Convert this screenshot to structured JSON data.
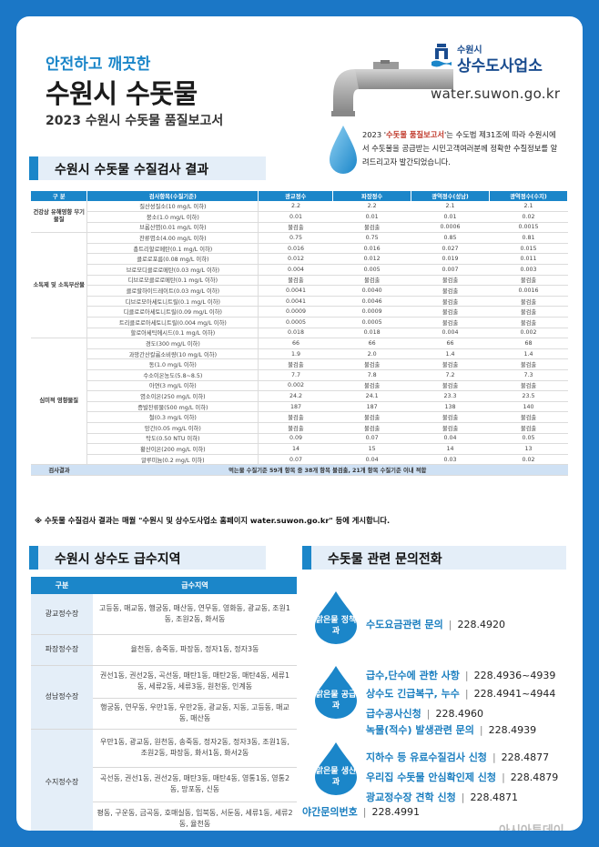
{
  "header": {
    "subtitle": "안전하고 깨끗한",
    "title": "수원시 수돗물",
    "report": "2023 수원시 수돗물 품질보고서",
    "logo_small": "수원시",
    "logo_big": "상수도사업소",
    "url": "water.suwon.go.kr",
    "intro_pre": "2023 '",
    "intro_hl": "수돗물 품질보고서",
    "intro_post": "'는 수도법 제31조에 따라 수원시에서 수돗물을 공급받는 시민고객여러분께 정확한 수질정보를 알려드리고자 발간되었습니다."
  },
  "colors": {
    "accent": "#1b86c9",
    "background": "#1b77c6",
    "highlight": "#c0392b"
  },
  "quality": {
    "section_title": "수원시 수돗물 수질검사 결과",
    "headers": [
      "구 분",
      "검사항목(수질기준)",
      "광교정수",
      "파장정수",
      "광역정수(성남)",
      "광역정수(수지)"
    ],
    "groups": [
      {
        "category": "건강상 유해영향 무기물질",
        "rows": [
          [
            "질산성질소(10 mg/L 이하)",
            "2.2",
            "2.2",
            "2.1",
            "2.1"
          ],
          [
            "붕소(1.0 mg/L 이하)",
            "0.01",
            "0.01",
            "0.01",
            "0.02"
          ],
          [
            "브롬산염(0.01 mg/L 이하)",
            "불검출",
            "불검출",
            "0.0006",
            "0.0015"
          ]
        ]
      },
      {
        "category": "소독제 및 소독부산물",
        "rows": [
          [
            "잔류염소(4.00 mg/L 이하)",
            "0.75",
            "0.75",
            "0.85",
            "0.81"
          ],
          [
            "총트리할로메탄(0.1 mg/L 이하)",
            "0.016",
            "0.016",
            "0.027",
            "0.015"
          ],
          [
            "클로로포름(0.08 mg/L 이하)",
            "0.012",
            "0.012",
            "0.019",
            "0.011"
          ],
          [
            "브로모디클로로메탄(0.03 mg/L 이하)",
            "0.004",
            "0.005",
            "0.007",
            "0.003"
          ],
          [
            "디브로모클로로메탄(0.1 mg/L 이하)",
            "불검출",
            "불검출",
            "불검출",
            "불검출"
          ],
          [
            "클로랄하이드레이트(0.03 mg/L 이하)",
            "0.0041",
            "0.0040",
            "불검출",
            "0.0016"
          ],
          [
            "디브로모아세토니트릴(0.1 mg/L 이하)",
            "0.0041",
            "0.0046",
            "불검출",
            "불검출"
          ],
          [
            "디클로로아세토니트릴(0.09 mg/L 이하)",
            "0.0009",
            "0.0009",
            "불검출",
            "불검출"
          ],
          [
            "트리클로로아세토니트릴(0.004 mg/L 이하)",
            "0.0005",
            "0.0005",
            "불검출",
            "불검출"
          ],
          [
            "할로아세틱에시드(0.1 mg/L 이하)",
            "0.018",
            "0.018",
            "0.004",
            "0.002"
          ]
        ]
      },
      {
        "category": "심미적 영향물질",
        "rows": [
          [
            "경도(300 mg/L 이하)",
            "66",
            "66",
            "66",
            "68"
          ],
          [
            "과망간산칼륨소비량(10 mg/L 이하)",
            "1.9",
            "2.0",
            "1.4",
            "1.4"
          ],
          [
            "동(1.0 mg/L 이하)",
            "불검출",
            "불검출",
            "불검출",
            "불검출"
          ],
          [
            "수소이온농도(5.8~8.5)",
            "7.7",
            "7.8",
            "7.2",
            "7.3"
          ],
          [
            "아연(3 mg/L 이하)",
            "0.002",
            "불검출",
            "불검출",
            "불검출"
          ],
          [
            "염소이온(250 mg/L 이하)",
            "24.2",
            "24.1",
            "23.3",
            "23.5"
          ],
          [
            "증발잔류물(500 mg/L 이하)",
            "187",
            "187",
            "138",
            "140"
          ],
          [
            "철(0.3 mg/L 이하)",
            "불검출",
            "불검출",
            "불검출",
            "불검출"
          ],
          [
            "망간(0.05 mg/L 이하)",
            "불검출",
            "불검출",
            "불검출",
            "불검출"
          ],
          [
            "탁도(0.50 NTU 이하)",
            "0.09",
            "0.07",
            "0.04",
            "0.05"
          ],
          [
            "황산이온(200 mg/L 이하)",
            "14",
            "15",
            "14",
            "13"
          ],
          [
            "알루미늄(0.2 mg/L 이하)",
            "0.07",
            "0.04",
            "0.03",
            "0.02"
          ]
        ]
      }
    ],
    "result_label": "검사결과",
    "result_text": "먹는물 수질기준 59개 항목 중 38개 항목 불검출, 21개 항목 수질기준 이내 적합",
    "note": "※ 수돗물 수질검사 결과는 매월 \"수원시 및 상수도사업소 홈페이지 water.suwon.go.kr\" 등에 게시합니다."
  },
  "supply": {
    "section_title": "수원시 상수도 급수지역",
    "headers": [
      "구분",
      "급수지역"
    ],
    "plants": [
      {
        "name": "광교정수장",
        "areas": [
          "고등동, 매교동, 행궁동, 매산동, 연무동, 영화동, 광교동, 조원1동, 조원2동, 화서동"
        ]
      },
      {
        "name": "파장정수장",
        "areas": [
          "율천동, 송죽동, 파장동, 정자1동, 정자3동"
        ]
      },
      {
        "name": "성남정수장",
        "areas": [
          "권선1동, 권선2동, 곡선동, 매탄1동, 매탄2동, 매탄4동, 세류1동, 세류2동, 세류3동, 원천동, 인계동",
          "행궁동, 연무동, 우만1동, 우만2동, 광교동, 지동, 고등동, 매교동, 매산동"
        ]
      },
      {
        "name": "수지정수장",
        "areas": [
          "우만1동, 광교동, 원천동, 송죽동, 정자2동, 정자3동, 조원1동, 조원2동, 파장동, 화서1동, 화서2동",
          "곡선동, 권선1동, 권선2동, 매탄3동, 매탄4동, 영통1동, 영통2동, 망포동, 신동",
          "평동, 구운동, 금곡동, 호매실동, 입북동, 서둔동, 세류1동, 세류2동, 율천동"
        ]
      }
    ]
  },
  "contacts": {
    "section_title": "수돗물 관련 문의전화",
    "groups": [
      {
        "dept": "맑은물 정책과",
        "items": [
          {
            "label": "수도요금관련 문의",
            "phone": "228.4920"
          }
        ]
      },
      {
        "dept": "맑은물 공급과",
        "items": [
          {
            "label": "급수,단수에 관한 사항",
            "phone": "228.4936~4939"
          },
          {
            "label": "상수도 긴급복구, 누수",
            "phone": "228.4941~4944"
          },
          {
            "label": "급수공사신청",
            "phone": "228.4960"
          },
          {
            "label": "녹물(적수) 발생관련 문의",
            "phone": "228.4939"
          }
        ]
      },
      {
        "dept": "맑은물 생산과",
        "items": [
          {
            "label": "지하수 등 유료수질검사 신청",
            "phone": "228.4877"
          },
          {
            "label": "우리집 수돗물 안심확인제 신청",
            "phone": "228.4879"
          },
          {
            "label": "광교정수장 견학 신청",
            "phone": "228.4871"
          }
        ]
      }
    ],
    "night_label": "야간문의번호",
    "night_phone": "228.4991"
  },
  "watermark": "아시아투데이"
}
